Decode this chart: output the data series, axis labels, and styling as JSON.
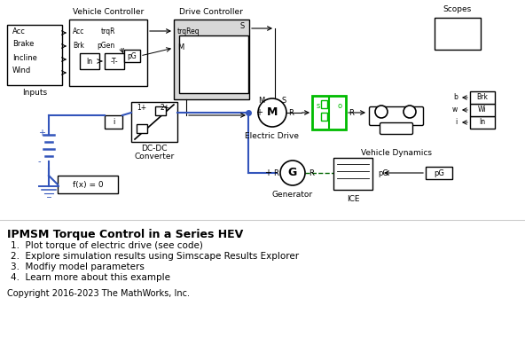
{
  "title": "IPMSM Torque Control in a Series HEV",
  "background_color": "#ffffff",
  "bullet_points": [
    "1.  Plot torque of electric drive (see code)",
    "2.  Explore simulation results using Simscape Results Explorer",
    "3.  Modfiy model parameters",
    "4.  Learn more about this example"
  ],
  "copyright": "Copyright 2016-2023 The MathWorks, Inc.",
  "block_color": "#e8e8e8",
  "block_edge": "#000000",
  "blue_color": "#3b7bbf",
  "green_color": "#00aa00",
  "line_color": "#000000",
  "blue_line": "#3355bb"
}
